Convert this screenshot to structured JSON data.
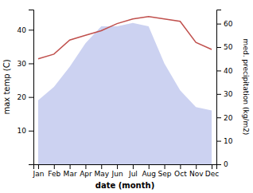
{
  "chart_data": {
    "type": "combo",
    "categories": [
      "Jan",
      "Feb",
      "Mar",
      "Apr",
      "May",
      "Jun",
      "Jul",
      "Aug",
      "Sep",
      "Oct",
      "Nov",
      "Dec"
    ],
    "xlabel": "date (month)",
    "ylabel": "max temp (C)",
    "y2label": "med. precipitation (kg/m2)",
    "ylim": [
      0,
      46
    ],
    "yticks": [
      10,
      20,
      30,
      40
    ],
    "y2lim": [
      0,
      66
    ],
    "y2ticks": [
      0,
      10,
      20,
      30,
      40,
      50,
      60
    ],
    "grid": false,
    "series": [
      {
        "type": "area",
        "color": "#aab4e8",
        "values": [
          19,
          23,
          29,
          36,
          41,
          41,
          42,
          41,
          30,
          22,
          17,
          16
        ]
      },
      {
        "type": "line",
        "color": "#c0504d",
        "axis": "y2",
        "values": [
          45,
          47,
          53,
          55,
          57,
          60,
          62,
          63,
          62,
          61,
          52,
          49
        ]
      }
    ]
  }
}
